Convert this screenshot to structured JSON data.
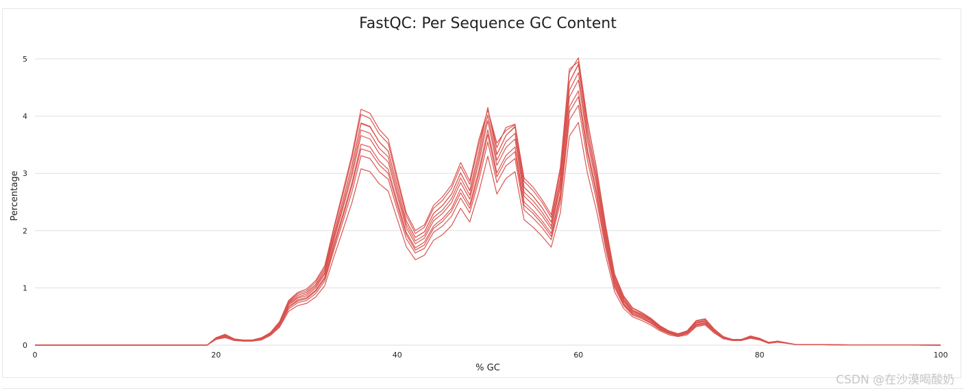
{
  "chart_data": {
    "type": "line",
    "title": "FastQC: Per Sequence GC Content",
    "xlabel": "% GC",
    "ylabel": "Percentage",
    "xlim": [
      0,
      100
    ],
    "ylim": [
      0,
      5.2
    ],
    "xticks": [
      0,
      20,
      40,
      60,
      80,
      100
    ],
    "yticks": [
      0,
      1,
      2,
      3,
      4,
      5
    ],
    "grid": true,
    "line_color": "#d9534f",
    "x": [
      0,
      19,
      20,
      21,
      22,
      23,
      24,
      25,
      26,
      27,
      28,
      29,
      30,
      31,
      32,
      33,
      34,
      35,
      36,
      37,
      38,
      39,
      40,
      41,
      42,
      43,
      44,
      45,
      46,
      47,
      48,
      49,
      50,
      51,
      52,
      53,
      54,
      55,
      56,
      57,
      58,
      59,
      60,
      61,
      62,
      63,
      64,
      65,
      66,
      67,
      68,
      69,
      70,
      71,
      72,
      73,
      74,
      75,
      76,
      77,
      78,
      79,
      80,
      81,
      82,
      83,
      84,
      90,
      100
    ],
    "series": [
      {
        "values": [
          0,
          0,
          0.12,
          0.16,
          0.09,
          0.08,
          0.08,
          0.11,
          0.2,
          0.37,
          0.7,
          0.82,
          0.86,
          1.0,
          1.24,
          1.83,
          2.39,
          2.96,
          3.66,
          3.6,
          3.35,
          3.2,
          2.61,
          2.05,
          1.77,
          1.87,
          2.17,
          2.3,
          2.49,
          2.84,
          2.55,
          3.18,
          3.92,
          3.14,
          3.45,
          3.6,
          2.6,
          2.45,
          2.26,
          2.03,
          2.75,
          4.33,
          4.63,
          3.57,
          2.8,
          1.87,
          1.1,
          0.76,
          0.58,
          0.51,
          0.42,
          0.3,
          0.22,
          0.18,
          0.22,
          0.38,
          0.41,
          0.25,
          0.13,
          0.09,
          0.09,
          0.14,
          0.11,
          0.04,
          0.06,
          0.04,
          0.01,
          0.005,
          0
        ]
      },
      {
        "values": [
          0,
          0,
          0.13,
          0.18,
          0.1,
          0.08,
          0.08,
          0.12,
          0.22,
          0.4,
          0.76,
          0.9,
          0.95,
          1.1,
          1.35,
          2.02,
          2.63,
          3.26,
          4.03,
          3.96,
          3.69,
          3.52,
          2.87,
          2.26,
          1.95,
          2.06,
          2.39,
          2.53,
          2.74,
          3.12,
          2.81,
          3.5,
          4.12,
          3.45,
          3.8,
          3.86,
          2.86,
          2.7,
          2.49,
          2.23,
          3.03,
          4.76,
          5.02,
          3.93,
          3.08,
          2.06,
          1.21,
          0.84,
          0.64,
          0.56,
          0.46,
          0.33,
          0.24,
          0.2,
          0.24,
          0.42,
          0.45,
          0.28,
          0.14,
          0.1,
          0.1,
          0.15,
          0.12,
          0.04,
          0.07,
          0.04,
          0.01,
          0.005,
          0
        ]
      },
      {
        "values": [
          0,
          0,
          0.1,
          0.13,
          0.08,
          0.07,
          0.07,
          0.09,
          0.17,
          0.31,
          0.59,
          0.69,
          0.73,
          0.84,
          1.04,
          1.54,
          2.01,
          2.49,
          3.08,
          3.03,
          2.82,
          2.69,
          2.2,
          1.72,
          1.49,
          1.57,
          1.83,
          1.93,
          2.09,
          2.39,
          2.15,
          2.67,
          3.3,
          2.64,
          2.91,
          3.03,
          2.19,
          2.06,
          1.9,
          1.71,
          2.31,
          3.65,
          3.89,
          3.0,
          2.35,
          1.57,
          0.93,
          0.64,
          0.49,
          0.43,
          0.35,
          0.25,
          0.18,
          0.15,
          0.18,
          0.32,
          0.35,
          0.21,
          0.11,
          0.08,
          0.08,
          0.12,
          0.09,
          0.03,
          0.05,
          0.03,
          0.01,
          0.004,
          0
        ]
      },
      {
        "values": [
          0,
          0,
          0.12,
          0.17,
          0.1,
          0.08,
          0.08,
          0.12,
          0.21,
          0.39,
          0.74,
          0.87,
          0.92,
          1.06,
          1.31,
          1.94,
          2.53,
          3.14,
          3.88,
          3.82,
          3.55,
          3.39,
          2.77,
          2.17,
          1.88,
          1.98,
          2.3,
          2.44,
          2.64,
          3.01,
          2.7,
          3.37,
          4.15,
          3.33,
          3.66,
          3.82,
          2.76,
          2.6,
          2.4,
          2.15,
          2.92,
          4.59,
          4.91,
          3.78,
          2.97,
          1.98,
          1.17,
          0.81,
          0.61,
          0.54,
          0.45,
          0.32,
          0.23,
          0.19,
          0.23,
          0.4,
          0.43,
          0.27,
          0.14,
          0.1,
          0.1,
          0.15,
          0.12,
          0.04,
          0.06,
          0.04,
          0.01,
          0.005,
          0
        ]
      },
      {
        "values": [
          0,
          0,
          0.11,
          0.15,
          0.09,
          0.07,
          0.08,
          0.11,
          0.19,
          0.35,
          0.67,
          0.79,
          0.83,
          0.96,
          1.19,
          1.76,
          2.29,
          2.84,
          3.51,
          3.46,
          3.22,
          3.07,
          2.51,
          1.97,
          1.7,
          1.8,
          2.08,
          2.21,
          2.39,
          2.73,
          2.45,
          3.05,
          3.76,
          3.01,
          3.31,
          3.46,
          2.5,
          2.35,
          2.17,
          1.95,
          2.64,
          4.16,
          4.44,
          3.43,
          2.69,
          1.8,
          1.06,
          0.73,
          0.56,
          0.49,
          0.4,
          0.29,
          0.21,
          0.17,
          0.21,
          0.36,
          0.39,
          0.24,
          0.12,
          0.09,
          0.09,
          0.13,
          0.11,
          0.04,
          0.06,
          0.04,
          0.01,
          0.005,
          0
        ]
      },
      {
        "values": [
          0,
          0,
          0.12,
          0.16,
          0.1,
          0.08,
          0.08,
          0.11,
          0.2,
          0.38,
          0.72,
          0.84,
          0.89,
          1.03,
          1.27,
          1.88,
          2.45,
          3.04,
          3.76,
          3.7,
          3.44,
          3.29,
          2.68,
          2.11,
          1.82,
          1.92,
          2.23,
          2.36,
          2.56,
          2.92,
          2.62,
          3.27,
          4.02,
          3.23,
          3.55,
          3.7,
          2.67,
          2.52,
          2.32,
          2.08,
          2.83,
          4.45,
          4.76,
          3.67,
          2.88,
          1.92,
          1.13,
          0.78,
          0.6,
          0.52,
          0.43,
          0.31,
          0.23,
          0.18,
          0.23,
          0.39,
          0.42,
          0.26,
          0.13,
          0.09,
          0.09,
          0.14,
          0.11,
          0.04,
          0.06,
          0.04,
          0.01,
          0.005,
          0
        ]
      },
      {
        "values": [
          0,
          0,
          0.1,
          0.14,
          0.09,
          0.07,
          0.07,
          0.1,
          0.18,
          0.33,
          0.63,
          0.74,
          0.78,
          0.9,
          1.12,
          1.66,
          2.16,
          2.68,
          3.31,
          3.26,
          3.03,
          2.9,
          2.37,
          1.86,
          1.61,
          1.69,
          1.97,
          2.08,
          2.25,
          2.57,
          2.31,
          2.88,
          3.55,
          2.84,
          3.13,
          3.26,
          2.36,
          2.22,
          2.05,
          1.84,
          2.49,
          3.93,
          4.19,
          3.23,
          2.53,
          1.69,
          1.0,
          0.69,
          0.52,
          0.46,
          0.38,
          0.27,
          0.2,
          0.16,
          0.2,
          0.34,
          0.37,
          0.23,
          0.12,
          0.08,
          0.08,
          0.13,
          0.1,
          0.04,
          0.05,
          0.04,
          0.01,
          0.004,
          0
        ]
      },
      {
        "values": [
          0,
          0,
          0.13,
          0.19,
          0.11,
          0.09,
          0.09,
          0.13,
          0.22,
          0.41,
          0.78,
          0.92,
          0.98,
          1.13,
          1.39,
          2.06,
          2.69,
          3.33,
          4.12,
          4.05,
          3.77,
          3.6,
          2.94,
          2.31,
          2.0,
          2.1,
          2.44,
          2.59,
          2.8,
          3.19,
          2.87,
          3.58,
          4.11,
          3.53,
          3.75,
          3.85,
          2.92,
          2.76,
          2.54,
          2.28,
          3.1,
          4.82,
          4.95,
          3.9,
          3.1,
          2.1,
          1.24,
          0.86,
          0.65,
          0.57,
          0.47,
          0.34,
          0.25,
          0.2,
          0.25,
          0.43,
          0.46,
          0.28,
          0.15,
          0.1,
          0.1,
          0.16,
          0.12,
          0.05,
          0.07,
          0.04,
          0.01,
          0.005,
          0
        ]
      },
      {
        "values": [
          0,
          0,
          0.11,
          0.15,
          0.09,
          0.08,
          0.08,
          0.1,
          0.19,
          0.35,
          0.66,
          0.77,
          0.81,
          0.94,
          1.16,
          1.72,
          2.24,
          2.78,
          3.43,
          3.38,
          3.15,
          3.0,
          2.45,
          1.93,
          1.66,
          1.75,
          2.04,
          2.16,
          2.34,
          2.66,
          2.39,
          2.98,
          3.68,
          2.94,
          3.24,
          3.38,
          2.44,
          2.3,
          2.12,
          1.9,
          2.58,
          4.07,
          4.34,
          3.35,
          2.63,
          1.76,
          1.04,
          0.71,
          0.54,
          0.48,
          0.39,
          0.28,
          0.21,
          0.17,
          0.21,
          0.35,
          0.38,
          0.24,
          0.12,
          0.09,
          0.09,
          0.13,
          0.1,
          0.04,
          0.06,
          0.04,
          0.01,
          0.005,
          0
        ]
      },
      {
        "values": [
          0,
          0,
          0.12,
          0.17,
          0.1,
          0.08,
          0.08,
          0.12,
          0.21,
          0.39,
          0.74,
          0.87,
          0.92,
          1.06,
          1.31,
          1.94,
          2.53,
          3.14,
          3.87,
          3.81,
          3.55,
          3.39,
          2.77,
          2.17,
          1.88,
          1.98,
          2.3,
          2.44,
          2.64,
          3.01,
          2.7,
          3.37,
          4.15,
          3.33,
          3.66,
          3.81,
          2.76,
          2.6,
          2.4,
          2.15,
          2.92,
          4.59,
          4.9,
          3.78,
          2.97,
          1.98,
          1.17,
          0.81,
          0.61,
          0.54,
          0.44,
          0.32,
          0.23,
          0.19,
          0.23,
          0.4,
          0.43,
          0.26,
          0.14,
          0.1,
          0.1,
          0.14,
          0.11,
          0.04,
          0.06,
          0.04,
          0.01,
          0.005,
          0
        ]
      }
    ]
  },
  "watermark": "CSDN @在沙漠喝酸奶"
}
